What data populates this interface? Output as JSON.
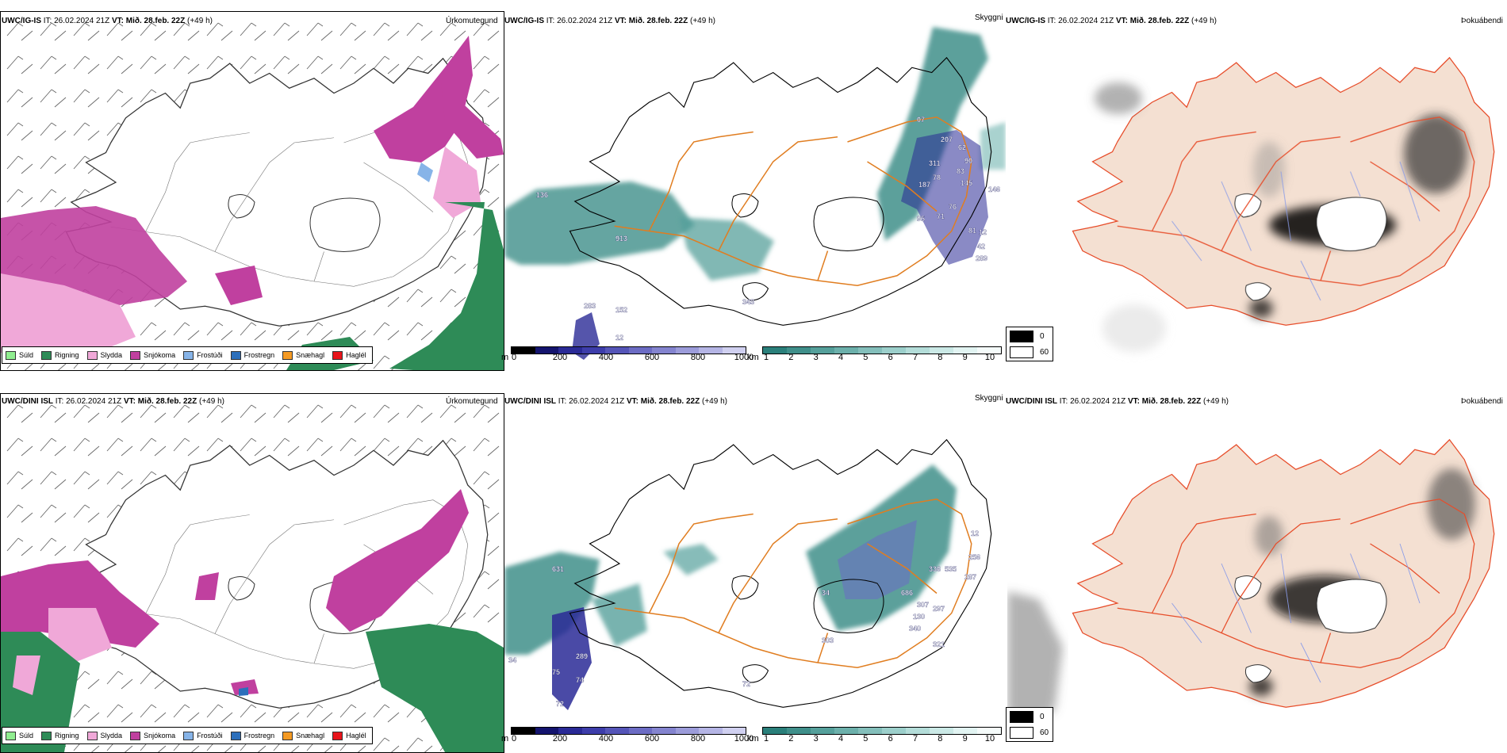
{
  "panels": [
    {
      "id": "ig-precip",
      "model": "UWC/IG-IS",
      "it_label": "IT:",
      "it": "26.02.2024 21Z",
      "vt_label": "VT:",
      "vt": "Mið. 28.feb. 22Z",
      "lead": "(+49 h)",
      "title": "Úrkomutegund"
    },
    {
      "id": "ig-vis",
      "model": "UWC/IG-IS",
      "it_label": "IT:",
      "it": "26.02.2024 21Z",
      "vt_label": "VT:",
      "vt": "Mið. 28.feb. 22Z",
      "lead": "(+49 h)",
      "title": "Skyggni"
    },
    {
      "id": "ig-fog",
      "model": "UWC/IG-IS",
      "it_label": "IT:",
      "it": "26.02.2024 21Z",
      "vt_label": "VT:",
      "vt": "Mið. 28.feb. 22Z",
      "lead": "(+49 h)",
      "title": "Þokuábendi"
    },
    {
      "id": "dini-precip",
      "model": "UWC/DINI ISL",
      "it_label": "IT:",
      "it": "26.02.2024 21Z",
      "vt_label": "VT:",
      "vt": "Mið. 28.feb. 22Z",
      "lead": "(+49 h)",
      "title": "Úrkomutegund"
    },
    {
      "id": "dini-vis",
      "model": "UWC/DINI ISL",
      "it_label": "IT:",
      "it": "26.02.2024 21Z",
      "vt_label": "VT:",
      "vt": "Mið. 28.feb. 22Z",
      "lead": "(+49 h)",
      "title": "Skyggni"
    },
    {
      "id": "dini-fog",
      "model": "UWC/DINI ISL",
      "it_label": "IT:",
      "it": "26.02.2024 21Z",
      "vt_label": "VT:",
      "vt": "Mið. 28.feb. 22Z",
      "lead": "(+49 h)",
      "title": "Þokuábendi"
    }
  ],
  "precip_legend": [
    {
      "label": "Súld",
      "color": "#90ee90"
    },
    {
      "label": "Rigning",
      "color": "#2e8b57"
    },
    {
      "label": "Slydda",
      "color": "#f0a8d8"
    },
    {
      "label": "Snjókoma",
      "color": "#c0409f"
    },
    {
      "label": "Frostúði",
      "color": "#87b4e8"
    },
    {
      "label": "Frostregn",
      "color": "#2c6fbb"
    },
    {
      "label": "Snæhagl",
      "color": "#f59a23"
    },
    {
      "label": "Haglél",
      "color": "#e8141b"
    }
  ],
  "vis_scale_m": {
    "unit": "m",
    "ticks": [
      "0",
      "200",
      "400",
      "600",
      "800",
      "1000"
    ],
    "colors": [
      "#000000",
      "#14146e",
      "#2a2a96",
      "#3d3daa",
      "#5555b8",
      "#6c6cc4",
      "#8484cf",
      "#9c9cda",
      "#b5b5e5",
      "#d0d0f0"
    ]
  },
  "vis_scale_km": {
    "unit": "km",
    "ticks": [
      "1",
      "2",
      "3",
      "4",
      "5",
      "6",
      "7",
      "8",
      "9",
      "10"
    ],
    "colors": [
      "#2a7f7a",
      "#3f8f8a",
      "#55a09b",
      "#6cb0ab",
      "#84bfbb",
      "#9ccfcb",
      "#b4ddd9",
      "#cbe9e6",
      "#e2f4f2",
      "#f5fbfa"
    ]
  },
  "fog_legend": [
    {
      "label": "0",
      "color": "#000000"
    },
    {
      "label": "60",
      "color": "#ffffff"
    }
  ],
  "vis_labels_ig": [
    "207",
    "62",
    "90",
    "83",
    "311",
    "145",
    "78",
    "187",
    "76",
    "95",
    "71",
    "81",
    "12",
    "42",
    "289",
    "343",
    "152",
    "12",
    "913",
    "283",
    "136",
    "146",
    "07"
  ],
  "vis_labels_dini": [
    "631",
    "336",
    "535",
    "256",
    "287",
    "686",
    "307",
    "130",
    "297",
    "340",
    "321",
    "303",
    "34",
    "12",
    "289",
    "75",
    "74",
    "72",
    "34",
    "72"
  ]
}
